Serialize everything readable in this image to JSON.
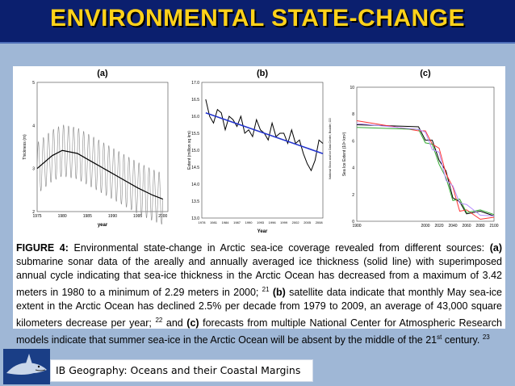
{
  "slide": {
    "title": "ENVIRONMENTAL STATE-CHANGE",
    "footer_label": "IB Geography: Oceans and their Coastal Margins",
    "accent_color": "#ffd21a",
    "header_bg": "#0b1f6e",
    "background": "#9fb7d6",
    "footer_icon": "shark-icon"
  },
  "caption": {
    "figure_label": "FIGURE 4:",
    "t1": " Environmental state-change in Arctic sea-ice coverage revealed from different sources: ",
    "pa": "(a)",
    "t2": " submarine sonar data of the areally and annually averaged ice thickness (solid line) with superimposed annual cycle indicating that sea-ice thickness in the Arctic Ocean has decreased from a maximum of 3.42 meters in 1980 to a minimum of 2.29 meters in 2000; ",
    "r21": "21",
    "pb": "(b)",
    "t3": " satellite data indicate that monthly May sea-ice extent in the Arctic Ocean has declined 2.5% per decade from 1979 to 2009, an average of 43,000 square kilometers decrease per year; ",
    "r22": "22",
    "t4": " and ",
    "pc": "(c)",
    "t5": " forecasts from multiple National Center for Atmospheric Research models indicate that summer sea-ice in the Arctic Ocean will be absent by the middle of the 21",
    "st": "st",
    "t6": " century. ",
    "r23": "23"
  },
  "chart_data": [
    {
      "type": "line",
      "panel_label": "(a)",
      "xlabel": "year",
      "ylabel": "Thickness (m)",
      "xlim": [
        1975,
        2001
      ],
      "ylim": [
        2,
        5
      ],
      "xticks": [
        "1975",
        "1980",
        "1985",
        "1990",
        "1995",
        "2000"
      ],
      "yticks": [
        "2",
        "3",
        "4",
        "5"
      ],
      "series": [
        {
          "x": [
            1975,
            1978,
            1980,
            1983,
            1986,
            1989,
            1992,
            1995,
            1998,
            2000
          ],
          "y": [
            3.0,
            3.3,
            3.42,
            3.35,
            3.15,
            2.95,
            2.75,
            2.55,
            2.38,
            2.29
          ]
        }
      ],
      "annual_cycle_amplitude": 0.6
    },
    {
      "type": "line",
      "panel_label": "(b)",
      "xlabel": "Year",
      "ylabel": "Extent (million sq km)",
      "side_note": "National Snow and Ice Data Center, Boulder, CO",
      "xlim": [
        1978,
        2009
      ],
      "ylim": [
        13.0,
        17.0
      ],
      "xticks": [
        "1978",
        "1981",
        "1984",
        "1987",
        "1990",
        "1993",
        "1996",
        "1999",
        "2002",
        "2005",
        "2008"
      ],
      "yticks": [
        "13.0",
        "13.5",
        "14.0",
        "14.5",
        "15.0",
        "15.5",
        "16.0",
        "16.5",
        "17.0"
      ],
      "series": [
        {
          "x": [
            1979,
            1980,
            1981,
            1982,
            1983,
            1984,
            1985,
            1986,
            1987,
            1988,
            1989,
            1990,
            1991,
            1992,
            1993,
            1994,
            1995,
            1996,
            1997,
            1998,
            1999,
            2000,
            2001,
            2002,
            2003,
            2004,
            2005,
            2006,
            2007,
            2008,
            2009
          ],
          "y": [
            16.5,
            16.0,
            15.8,
            16.2,
            16.1,
            15.6,
            16.0,
            15.9,
            15.7,
            16.0,
            15.5,
            15.6,
            15.4,
            15.9,
            15.6,
            15.5,
            15.3,
            15.8,
            15.4,
            15.5,
            15.5,
            15.2,
            15.6,
            15.2,
            15.3,
            14.9,
            14.6,
            14.4,
            14.7,
            15.3,
            15.2
          ]
        },
        {
          "x": [
            1979,
            2009
          ],
          "y": [
            16.1,
            14.9
          ]
        }
      ]
    },
    {
      "type": "line",
      "panel_label": "(c)",
      "ylabel": "Sea Ice Extent (10⁶ km²)",
      "xlim": [
        1900,
        2100
      ],
      "ylim": [
        0,
        10
      ],
      "xticks": [
        "1900",
        "2000",
        "2020",
        "2040",
        "2060",
        "2080",
        "2100"
      ],
      "yticks": [
        "0",
        "2",
        "4",
        "6",
        "8",
        "10"
      ],
      "series": [
        {
          "x": [
            1900,
            1990,
            2000,
            2010,
            2020,
            2030,
            2040,
            2050,
            2060,
            2080,
            2100
          ],
          "y": [
            7.2,
            6.8,
            6.3,
            5.8,
            4.8,
            3.5,
            2.0,
            1.2,
            0.8,
            0.5,
            0.4
          ]
        },
        {
          "x": [
            1900,
            1990,
            2000,
            2010,
            2020,
            2030,
            2040,
            2050,
            2060,
            2080,
            2100
          ],
          "y": [
            7.5,
            7.0,
            6.5,
            6.0,
            5.2,
            3.8,
            2.3,
            1.0,
            0.6,
            0.4,
            0.3
          ]
        },
        {
          "x": [
            1900,
            1990,
            2000,
            2010,
            2020,
            2030,
            2040,
            2050,
            2060,
            2080,
            2100
          ],
          "y": [
            7.0,
            6.6,
            6.1,
            5.5,
            4.5,
            3.0,
            1.8,
            1.4,
            0.9,
            0.6,
            0.5
          ]
        },
        {
          "x": [
            1900,
            1990,
            2000,
            2010,
            2020,
            2030,
            2040,
            2050,
            2060,
            2080,
            2100
          ],
          "y": [
            7.3,
            7.1,
            6.4,
            5.6,
            4.9,
            3.3,
            2.4,
            1.6,
            1.0,
            0.7,
            0.4
          ]
        }
      ],
      "series_colors": [
        "#000000",
        "#ff3333",
        "#33aa33",
        "#b48cff"
      ]
    }
  ]
}
